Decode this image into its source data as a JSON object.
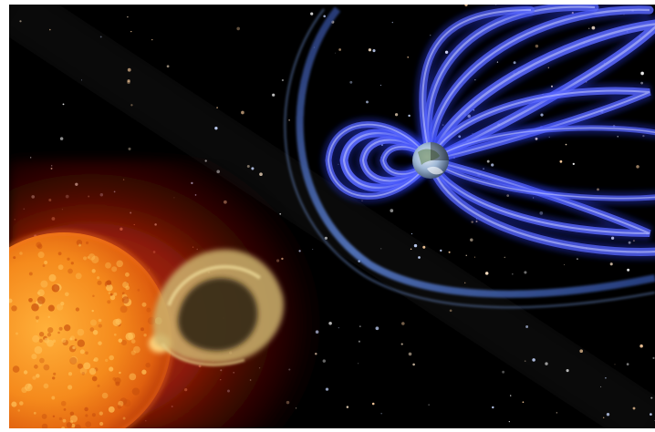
{
  "image": {
    "subject": "space-weather-illustration",
    "colors": {
      "background": "#000000",
      "sun_core": "#f58a1c",
      "sun_glow": "#d2340a",
      "cme": "#c9a85a",
      "magnetosphere": "#3d4cf2",
      "bow_shock": "#4a6fbf",
      "earth": "#9fb8d6"
    }
  }
}
